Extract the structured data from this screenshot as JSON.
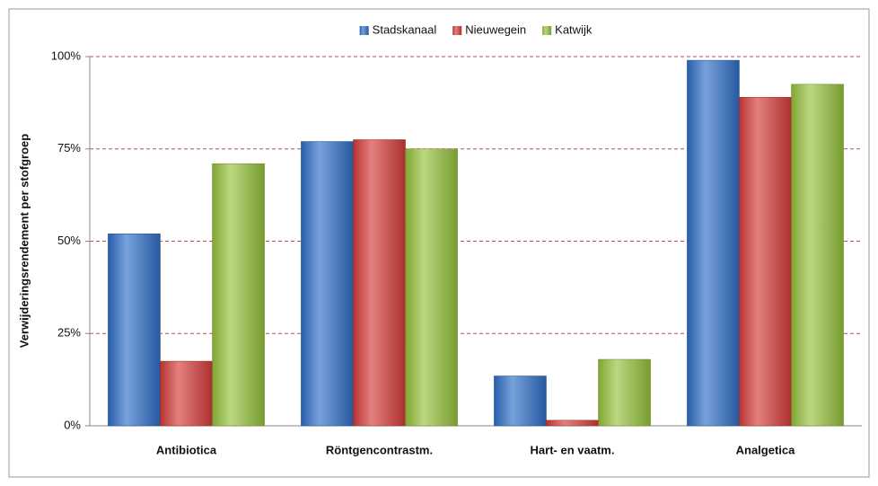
{
  "chart_data": {
    "type": "bar",
    "y_label": "Verwijderingsrendement per stofgroep",
    "categories": [
      "Antibiotica",
      "Röntgencontrastm.",
      "Hart- en vaatm.",
      "Analgetica"
    ],
    "series": [
      {
        "name": "Stadskanaal",
        "color": "#2f6fc8",
        "values": [
          52,
          77,
          13.5,
          99
        ]
      },
      {
        "name": "Nieuwegein",
        "color": "#d63c3a",
        "values": [
          17.5,
          77.5,
          1.5,
          89
        ]
      },
      {
        "name": "Katwijk",
        "color": "#96c33c",
        "values": [
          71,
          75,
          18,
          92.5
        ]
      }
    ],
    "ylim": [
      0,
      100
    ],
    "yticks": [
      {
        "value": 0,
        "label": "0%"
      },
      {
        "value": 25,
        "label": "25%"
      },
      {
        "value": 50,
        "label": "50%"
      },
      {
        "value": 75,
        "label": "75%"
      },
      {
        "value": 100,
        "label": "100%"
      }
    ],
    "grid": true,
    "legend": "top"
  }
}
